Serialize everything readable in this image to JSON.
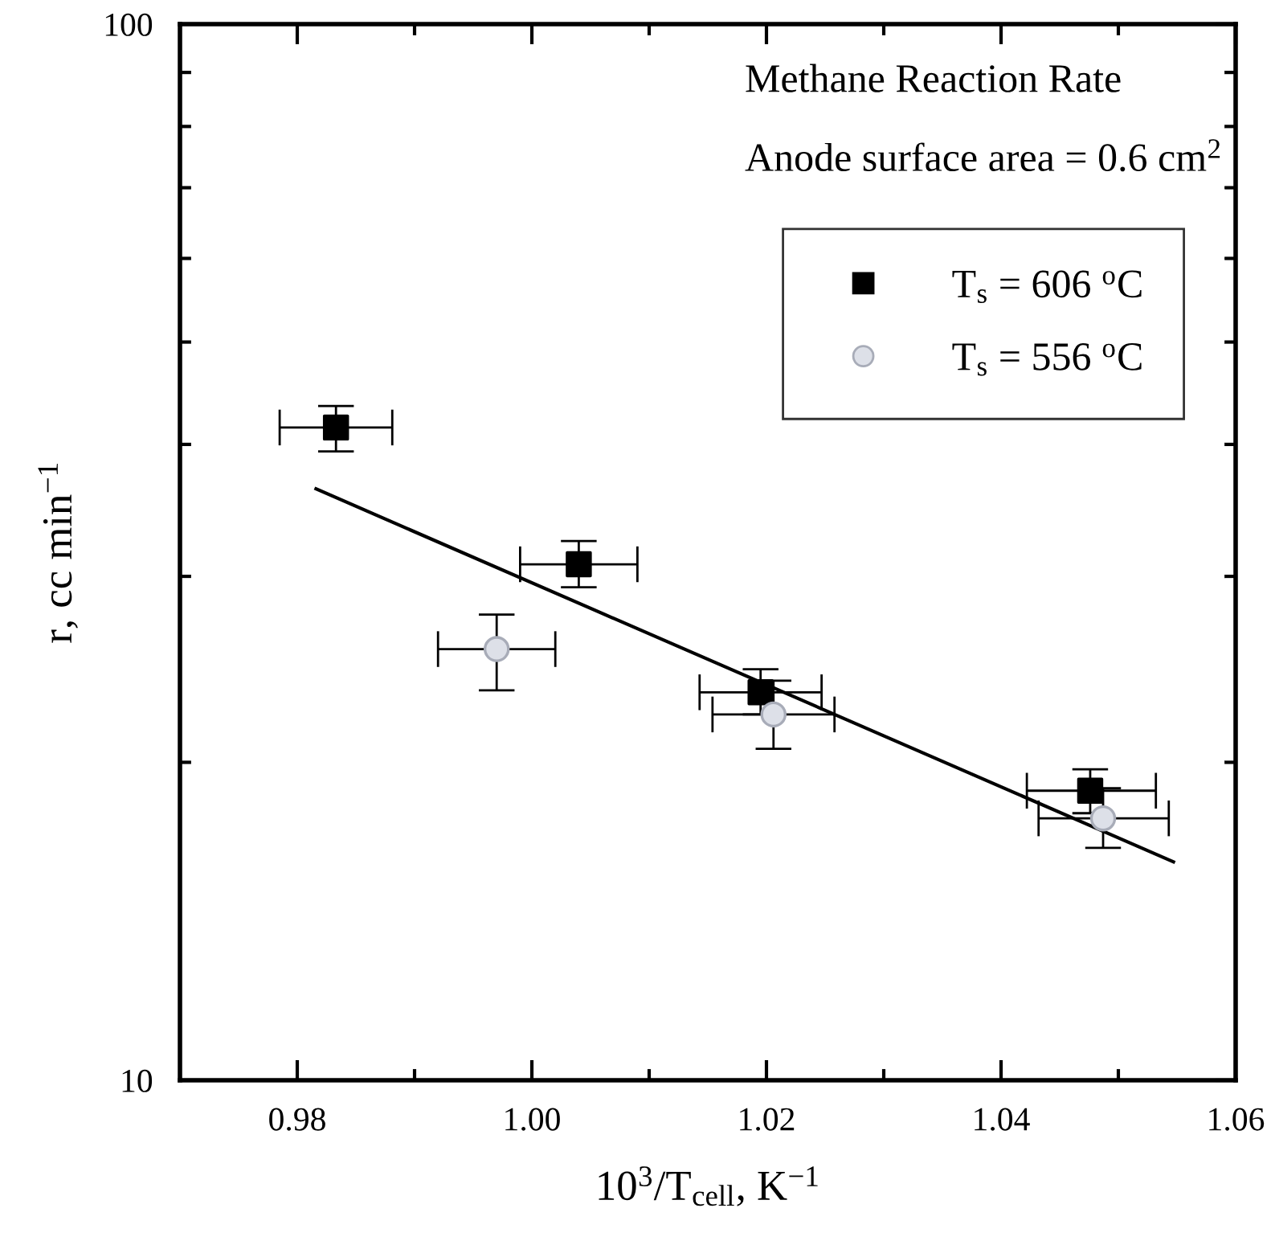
{
  "chart_data": {
    "type": "scatter",
    "xlabel": "10$^{3}$/T$_{cell}$, K$^{−1}$",
    "ylabel": "r, cc min$^{−1}$",
    "annotations": [
      "Methane Reaction Rate",
      "Anode surface area = 0.6 cm$^{2}$"
    ],
    "log": "y",
    "xlim": [
      0.97,
      1.06
    ],
    "xticks": [
      {
        "value": 0.98,
        "label": "0.98"
      },
      {
        "value": 0.99,
        "label": null
      },
      {
        "value": 1.0,
        "label": "1.00"
      },
      {
        "value": 1.01,
        "label": null
      },
      {
        "value": 1.02,
        "label": "1.02"
      },
      {
        "value": 1.03,
        "label": null
      },
      {
        "value": 1.04,
        "label": "1.04"
      },
      {
        "value": 1.05,
        "label": null
      },
      {
        "value": 1.06,
        "label": "1.06"
      }
    ],
    "ylim": [
      10,
      100
    ],
    "yticks": [
      10,
      {
        "value": 20,
        "label": null
      },
      {
        "value": 30,
        "label": null
      },
      {
        "value": 40,
        "label": null
      },
      {
        "value": 50,
        "label": null
      },
      {
        "value": 60,
        "label": null
      },
      {
        "value": 70,
        "label": null
      },
      {
        "value": 80,
        "label": null
      },
      {
        "value": 90,
        "label": null
      },
      100
    ],
    "grid": false,
    "legend": "top right",
    "series": [
      {
        "name": "T$_{s}$ = 606 $^{o}$C",
        "marker": "square",
        "color": "#000000",
        "x": [
          0.9833,
          1.004,
          1.0195,
          1.0476
        ],
        "values": [
          41.5,
          30.8,
          23.3,
          18.8
        ],
        "errors": [
          [
            39.4,
            43.5
          ],
          [
            29.3,
            32.4
          ],
          [
            22.2,
            24.5
          ],
          [
            17.9,
            19.7
          ]
        ],
        "xerrors": [
          [
            0.9785,
            0.9881
          ],
          [
            0.999,
            1.009
          ],
          [
            1.0143,
            1.0247
          ],
          [
            1.0422,
            1.0532
          ]
        ]
      },
      {
        "name": "T$_{s}$ = 556 $^{o}$C",
        "marker": "circle",
        "color": "#dde0e8",
        "x": [
          0.997,
          1.0206,
          1.0487
        ],
        "values": [
          25.6,
          22.2,
          17.7
        ],
        "errors": [
          [
            23.4,
            27.6
          ],
          [
            20.6,
            23.9
          ],
          [
            16.6,
            18.9
          ]
        ],
        "xerrors": [
          [
            0.992,
            1.002
          ],
          [
            1.0154,
            1.0258
          ],
          [
            1.0432,
            1.0543
          ]
        ]
      },
      {
        "type": "line",
        "marker": "none",
        "line_style": "solid",
        "color": "#000000",
        "x": [
          0.9816,
          1.0547
        ],
        "values": [
          36.3,
          16.1
        ]
      }
    ]
  }
}
